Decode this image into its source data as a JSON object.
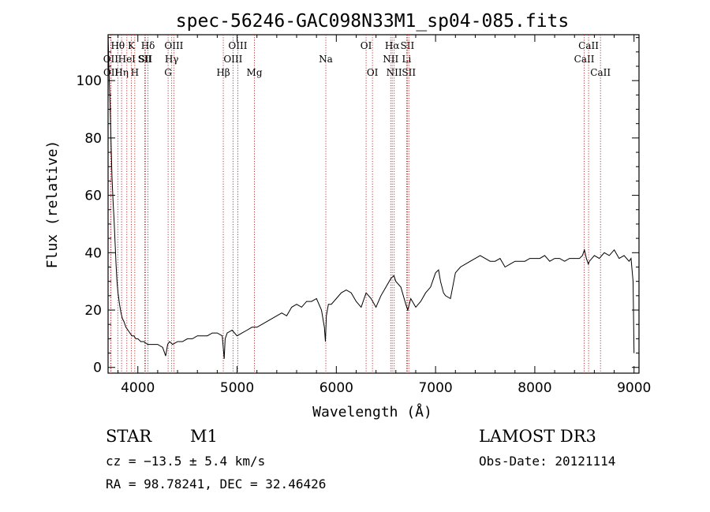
{
  "chart_data": {
    "type": "line",
    "title": "spec-56246-GAC098N33M1_sp04-085.fits",
    "xlabel": "Wavelength (Å)",
    "ylabel": "Flux (relative)",
    "xlim": [
      3700,
      9050
    ],
    "ylim": [
      -2,
      116
    ],
    "xticks": [
      4000,
      5000,
      6000,
      7000,
      8000,
      9000
    ],
    "yticks": [
      0,
      20,
      40,
      60,
      80,
      100
    ],
    "grid": false,
    "series": [
      {
        "name": "flux",
        "x": [
          3700,
          3710,
          3720,
          3730,
          3740,
          3750,
          3760,
          3770,
          3780,
          3790,
          3800,
          3815,
          3830,
          3845,
          3860,
          3880,
          3900,
          3920,
          3940,
          3960,
          3980,
          4000,
          4030,
          4060,
          4100,
          4150,
          4200,
          4250,
          4280,
          4300,
          4320,
          4350,
          4400,
          4450,
          4500,
          4550,
          4600,
          4650,
          4700,
          4750,
          4800,
          4850,
          4870,
          4880,
          4900,
          4950,
          5000,
          5050,
          5100,
          5150,
          5200,
          5250,
          5300,
          5350,
          5400,
          5450,
          5500,
          5550,
          5600,
          5650,
          5700,
          5750,
          5800,
          5850,
          5880,
          5890,
          5900,
          5920,
          5950,
          6000,
          6050,
          6100,
          6150,
          6200,
          6250,
          6300,
          6350,
          6400,
          6450,
          6500,
          6550,
          6580,
          6600,
          6650,
          6700,
          6720,
          6750,
          6800,
          6850,
          6900,
          6950,
          7000,
          7030,
          7050,
          7080,
          7100,
          7150,
          7200,
          7250,
          7300,
          7350,
          7400,
          7450,
          7500,
          7550,
          7600,
          7650,
          7700,
          7750,
          7800,
          7850,
          7900,
          7950,
          8000,
          8050,
          8100,
          8150,
          8200,
          8250,
          8300,
          8350,
          8400,
          8450,
          8480,
          8500,
          8520,
          8540,
          8550,
          8600,
          8650,
          8700,
          8750,
          8800,
          8850,
          8900,
          8950,
          8970,
          8990,
          9000
        ],
        "values": [
          116,
          102,
          92,
          78,
          66,
          58,
          52,
          44,
          36,
          30,
          26,
          22,
          19,
          17,
          16,
          14,
          13,
          12,
          11,
          11,
          10,
          10,
          9,
          9,
          8,
          8,
          8,
          7,
          4,
          8,
          9,
          8,
          9,
          9,
          10,
          10,
          11,
          11,
          11,
          12,
          12,
          11,
          3,
          10,
          12,
          13,
          11,
          12,
          13,
          14,
          14,
          15,
          16,
          17,
          18,
          19,
          18,
          21,
          22,
          21,
          23,
          23,
          24,
          20,
          14,
          9,
          18,
          22,
          22,
          24,
          26,
          27,
          26,
          23,
          21,
          26,
          24,
          21,
          25,
          28,
          31,
          32,
          30,
          28,
          22,
          20,
          24,
          21,
          23,
          26,
          28,
          33,
          34,
          30,
          26,
          25,
          24,
          33,
          35,
          36,
          37,
          38,
          39,
          38,
          37,
          37,
          38,
          35,
          36,
          37,
          37,
          37,
          38,
          38,
          38,
          39,
          37,
          38,
          38,
          37,
          38,
          38,
          38,
          39,
          41,
          38,
          36,
          37,
          39,
          38,
          40,
          39,
          41,
          38,
          39,
          37,
          38,
          30,
          5
        ]
      }
    ],
    "line_markers": [
      {
        "label": "OII",
        "wl": 3727,
        "row": 2
      },
      {
        "label": "OII",
        "wl": 3729,
        "row": 3
      },
      {
        "label": "Hθ",
        "wl": 3798,
        "row": 1
      },
      {
        "label": "Hη",
        "wl": 3836,
        "row": 3
      },
      {
        "label": "HeI",
        "wl": 3889,
        "row": 2
      },
      {
        "label": "K",
        "wl": 3934,
        "row": 1
      },
      {
        "label": "H",
        "wl": 3969,
        "row": 3
      },
      {
        "label": "SII",
        "wl": 4069,
        "row": 2
      },
      {
        "label": "Hδ",
        "wl": 4102,
        "row": 1
      },
      {
        "label": "SII",
        "wl": 4076,
        "row": 2
      },
      {
        "label": "G",
        "wl": 4305,
        "row": 3
      },
      {
        "label": "Hγ",
        "wl": 4341,
        "row": 2
      },
      {
        "label": "OIII",
        "wl": 4363,
        "row": 1
      },
      {
        "label": "Hβ",
        "wl": 4861,
        "row": 3
      },
      {
        "label": "OIII",
        "wl": 4959,
        "row": 2
      },
      {
        "label": "OIII",
        "wl": 5007,
        "row": 1
      },
      {
        "label": "Mg",
        "wl": 5175,
        "row": 3
      },
      {
        "label": "Na",
        "wl": 5894,
        "row": 2
      },
      {
        "label": "OI",
        "wl": 6300,
        "row": 1
      },
      {
        "label": "OI",
        "wl": 6364,
        "row": 3
      },
      {
        "label": "NII",
        "wl": 6548,
        "row": 2
      },
      {
        "label": "Hα",
        "wl": 6563,
        "row": 1
      },
      {
        "label": "NII",
        "wl": 6583,
        "row": 3
      },
      {
        "label": "Li",
        "wl": 6708,
        "row": 2
      },
      {
        "label": "SII",
        "wl": 6716,
        "row": 1
      },
      {
        "label": "SII",
        "wl": 6731,
        "row": 3
      },
      {
        "label": "CaII",
        "wl": 8498,
        "row": 2
      },
      {
        "label": "CaII",
        "wl": 8542,
        "row": 1
      },
      {
        "label": "CaII",
        "wl": 8662,
        "row": 3
      }
    ]
  },
  "footer": {
    "class_label": "STAR",
    "subclass_label": "M1",
    "survey_label": "LAMOST DR3",
    "cz_text": "cz = −13.5 ± 5.4 km/s",
    "obs_date_text": "Obs-Date: 20121114",
    "coords_text": "RA =  98.78241, DEC =  32.46426"
  },
  "colors": {
    "spectrum": "#000000",
    "marker_line": "#b22222",
    "axis": "#000000"
  }
}
